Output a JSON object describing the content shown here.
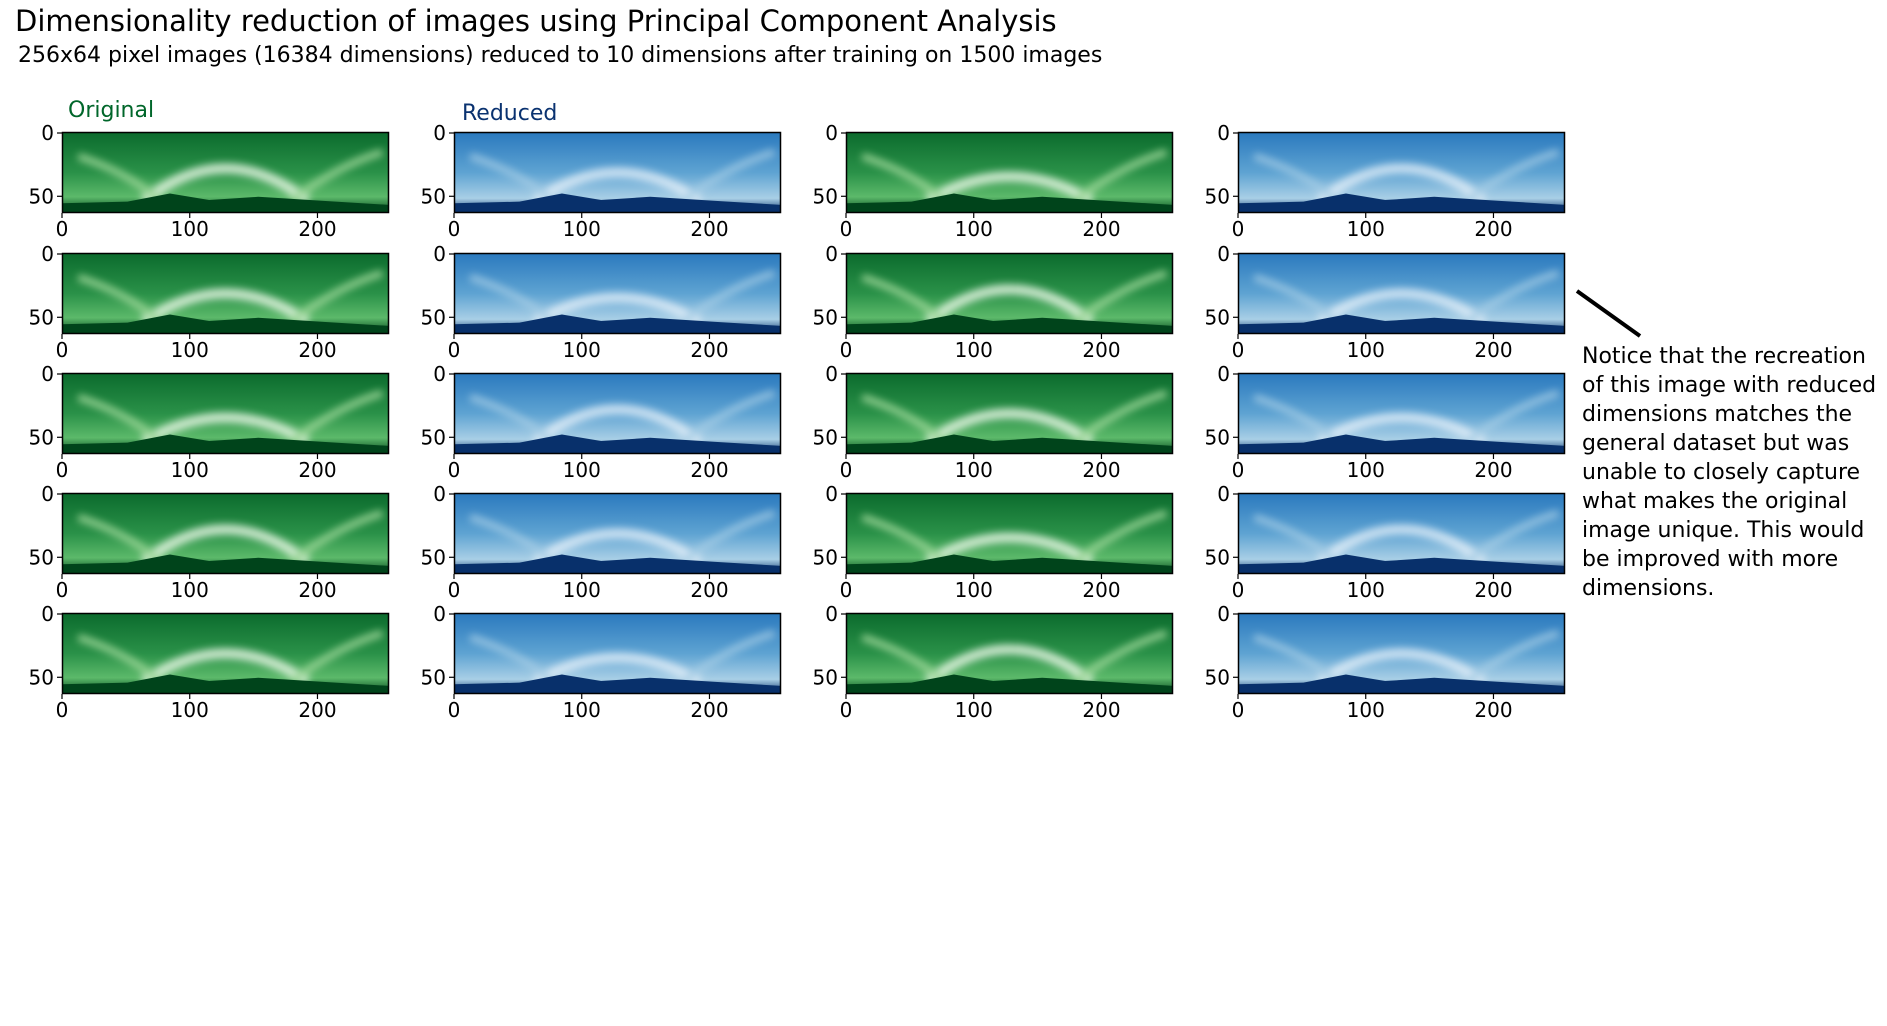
{
  "chart_data": {
    "type": "heatmap",
    "title": "Dimensionality reduction of images using Principal Component Analysis",
    "subtitle": "256x64 pixel images (16384 dimensions) reduced to 10 dimensions after training on 1500 images",
    "image_width": 256,
    "image_height": 64,
    "x_ticks": [
      "0",
      "100",
      "200"
    ],
    "y_ticks": [
      "0",
      "50"
    ],
    "column_labels": [
      {
        "text": "Original",
        "color": "#00662a"
      },
      {
        "text": "Reduced",
        "color": "#0a3270"
      }
    ],
    "colormaps": {
      "original": "Greens",
      "reduced": "Blues"
    },
    "grid": false,
    "rows": 5,
    "columns": 4
  },
  "annotation": {
    "lines": [
      "Notice that the recreation",
      "of this image with reduced",
      "dimensions matches the",
      "general dataset but was",
      "unable to closely capture",
      "what makes the original",
      "image unique. This would",
      "be improved with more",
      "dimensions."
    ]
  }
}
